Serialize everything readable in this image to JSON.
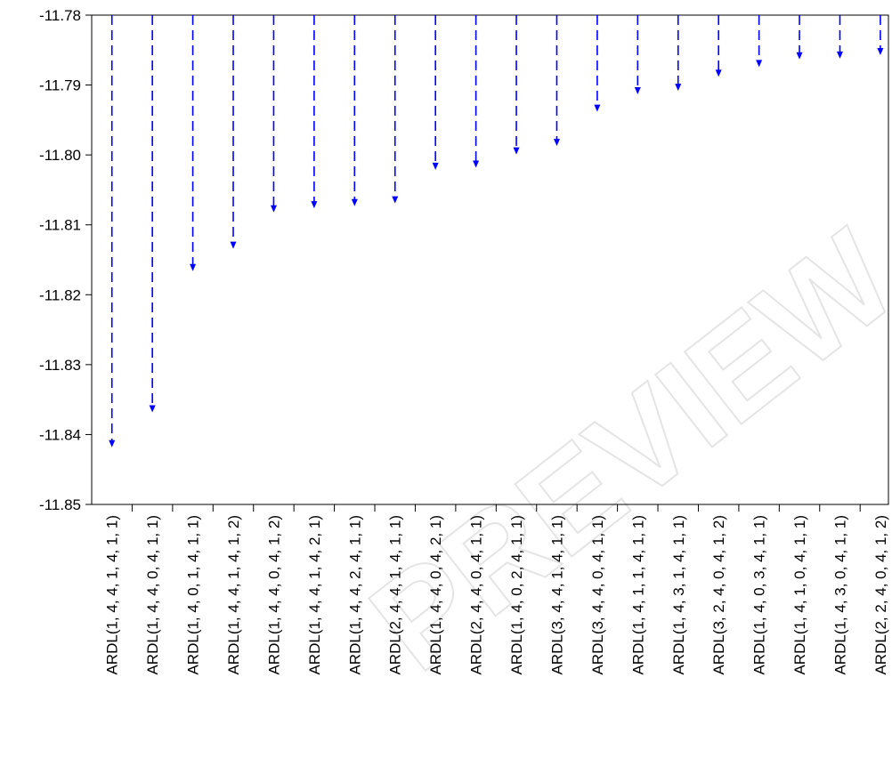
{
  "chart_data": {
    "type": "bar",
    "title": "",
    "xlabel": "",
    "ylabel": "",
    "ylim": [
      -11.85,
      -11.78
    ],
    "yticks": [
      "-11.78",
      "-11.79",
      "-11.80",
      "-11.81",
      "-11.82",
      "-11.83",
      "-11.84",
      "-11.85"
    ],
    "grid": false,
    "legend": "none",
    "bar_style": "dashed drop-lines with arrowheads from top",
    "series_color": "#0000ff",
    "categories": [
      "ARDL(1, 4, 4, 1, 4, 1, 1)",
      "ARDL(1, 4, 4, 0, 4, 1, 1)",
      "ARDL(1, 4, 0, 1, 4, 1, 1)",
      "ARDL(1, 4, 4, 1, 4, 1, 2)",
      "ARDL(1, 4, 4, 0, 4, 1, 2)",
      "ARDL(1, 4, 4, 1, 4, 2, 1)",
      "ARDL(1, 4, 4, 2, 4, 1, 1)",
      "ARDL(2, 4, 4, 1, 4, 1, 1)",
      "ARDL(1, 4, 4, 0, 4, 2, 1)",
      "ARDL(2, 4, 4, 0, 4, 1, 1)",
      "ARDL(1, 4, 0, 2, 4, 1, 1)",
      "ARDL(3, 4, 4, 1, 4, 1, 1)",
      "ARDL(3, 4, 4, 0, 4, 1, 1)",
      "ARDL(1, 4, 1, 1, 4, 1, 1)",
      "ARDL(1, 4, 3, 1, 4, 1, 1)",
      "ARDL(3, 2, 4, 0, 4, 1, 2)",
      "ARDL(1, 4, 0, 3, 4, 1, 1)",
      "ARDL(1, 4, 1, 0, 4, 1, 1)",
      "ARDL(1, 4, 3, 0, 4, 1, 1)",
      "ARDL(2, 2, 4, 0, 4, 1, 2)"
    ],
    "values": [
      -11.8417,
      -11.8367,
      -11.8165,
      -11.8133,
      -11.8081,
      -11.8075,
      -11.8072,
      -11.8068,
      -11.802,
      -11.8017,
      -11.7998,
      -11.7986,
      -11.7937,
      -11.7912,
      -11.7907,
      -11.7887,
      -11.7873,
      -11.7862,
      -11.7861,
      -11.7856
    ]
  },
  "watermark": {
    "text": "PREVIEW",
    "color": "#cfcfcf"
  }
}
